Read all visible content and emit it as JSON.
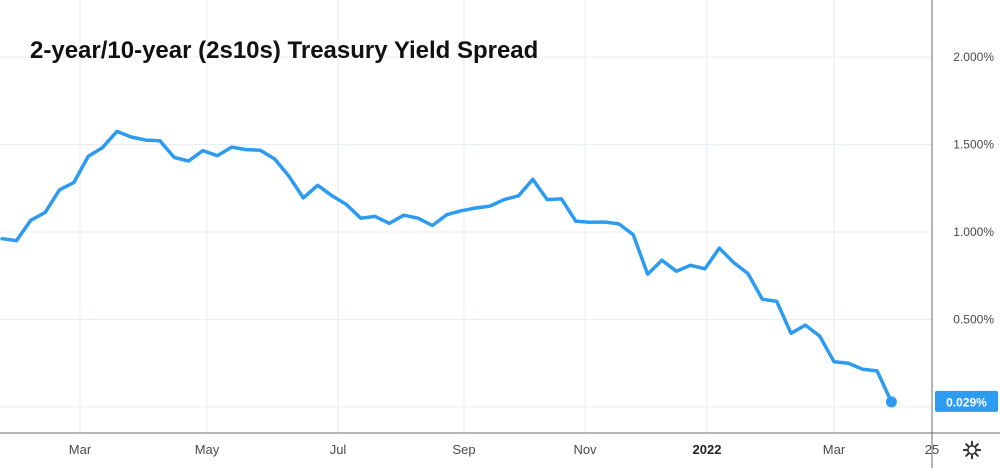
{
  "chart_data": {
    "type": "line",
    "title": "2-year/10-year (2s10s) Treasury Yield Spread",
    "xlabel": "",
    "ylabel": "",
    "x_tick_labels": [
      "Mar",
      "May",
      "Jul",
      "Sep",
      "Nov",
      "2022",
      "Mar",
      "25"
    ],
    "y_tick_labels": [
      "2.000%",
      "1.500%",
      "1.000%",
      "0.500%"
    ],
    "ylim": [
      -0.1,
      2.35
    ],
    "grid": true,
    "line_color": "#2d9bf0",
    "grid_color": "#e8eef4",
    "last_value_label": "0.029%",
    "series": [
      {
        "points": [
          [
            "2021-01-22",
            0.962
          ],
          [
            "2021-01-29",
            0.951
          ],
          [
            "2021-02-05",
            1.067
          ],
          [
            "2021-02-12",
            1.112
          ],
          [
            "2021-02-19",
            1.241
          ],
          [
            "2021-02-26",
            1.283
          ],
          [
            "2021-03-05",
            1.432
          ],
          [
            "2021-03-12",
            1.482
          ],
          [
            "2021-03-19",
            1.575
          ],
          [
            "2021-03-26",
            1.543
          ],
          [
            "2021-04-02",
            1.525
          ],
          [
            "2021-04-09",
            1.521
          ],
          [
            "2021-04-16",
            1.426
          ],
          [
            "2021-04-23",
            1.406
          ],
          [
            "2021-04-30",
            1.465
          ],
          [
            "2021-05-07",
            1.436
          ],
          [
            "2021-05-14",
            1.485
          ],
          [
            "2021-05-21",
            1.471
          ],
          [
            "2021-05-28",
            1.467
          ],
          [
            "2021-06-04",
            1.417
          ],
          [
            "2021-06-11",
            1.318
          ],
          [
            "2021-06-18",
            1.195
          ],
          [
            "2021-06-25",
            1.267
          ],
          [
            "2021-07-02",
            1.207
          ],
          [
            "2021-07-09",
            1.157
          ],
          [
            "2021-07-16",
            1.079
          ],
          [
            "2021-07-23",
            1.089
          ],
          [
            "2021-07-30",
            1.049
          ],
          [
            "2021-08-06",
            1.096
          ],
          [
            "2021-08-13",
            1.079
          ],
          [
            "2021-08-20",
            1.037
          ],
          [
            "2021-08-27",
            1.099
          ],
          [
            "2021-09-03",
            1.121
          ],
          [
            "2021-09-10",
            1.137
          ],
          [
            "2021-09-17",
            1.148
          ],
          [
            "2021-09-24",
            1.185
          ],
          [
            "2021-10-01",
            1.207
          ],
          [
            "2021-10-08",
            1.301
          ],
          [
            "2021-10-15",
            1.185
          ],
          [
            "2021-10-22",
            1.189
          ],
          [
            "2021-10-29",
            1.061
          ],
          [
            "2021-11-05",
            1.056
          ],
          [
            "2021-11-12",
            1.057
          ],
          [
            "2021-11-19",
            1.046
          ],
          [
            "2021-11-26",
            0.985
          ],
          [
            "2021-12-03",
            0.759
          ],
          [
            "2021-12-10",
            0.839
          ],
          [
            "2021-12-17",
            0.776
          ],
          [
            "2021-12-24",
            0.81
          ],
          [
            "2021-12-31",
            0.79
          ],
          [
            "2022-01-07",
            0.908
          ],
          [
            "2022-01-14",
            0.826
          ],
          [
            "2022-01-21",
            0.762
          ],
          [
            "2022-01-28",
            0.616
          ],
          [
            "2022-02-04",
            0.604
          ],
          [
            "2022-02-11",
            0.421
          ],
          [
            "2022-02-18",
            0.468
          ],
          [
            "2022-02-25",
            0.405
          ],
          [
            "2022-03-04",
            0.259
          ],
          [
            "2022-03-11",
            0.25
          ],
          [
            "2022-03-18",
            0.216
          ],
          [
            "2022-03-25",
            0.206
          ],
          [
            "2022-04-01",
            0.029
          ]
        ]
      }
    ]
  }
}
